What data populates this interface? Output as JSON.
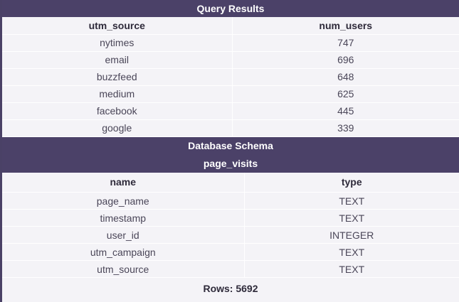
{
  "query_results": {
    "title": "Query Results",
    "columns": [
      "utm_source",
      "num_users"
    ],
    "rows": [
      [
        "nytimes",
        "747"
      ],
      [
        "email",
        "696"
      ],
      [
        "buzzfeed",
        "648"
      ],
      [
        "medium",
        "625"
      ],
      [
        "facebook",
        "445"
      ],
      [
        "google",
        "339"
      ]
    ]
  },
  "schema": {
    "title": "Database Schema",
    "table_name": "page_visits",
    "columns": [
      "name",
      "type"
    ],
    "rows": [
      [
        "page_name",
        "TEXT"
      ],
      [
        "timestamp",
        "TEXT"
      ],
      [
        "user_id",
        "INTEGER"
      ],
      [
        "utm_campaign",
        "TEXT"
      ],
      [
        "utm_source",
        "TEXT"
      ]
    ],
    "row_count": "Rows: 5692"
  }
}
